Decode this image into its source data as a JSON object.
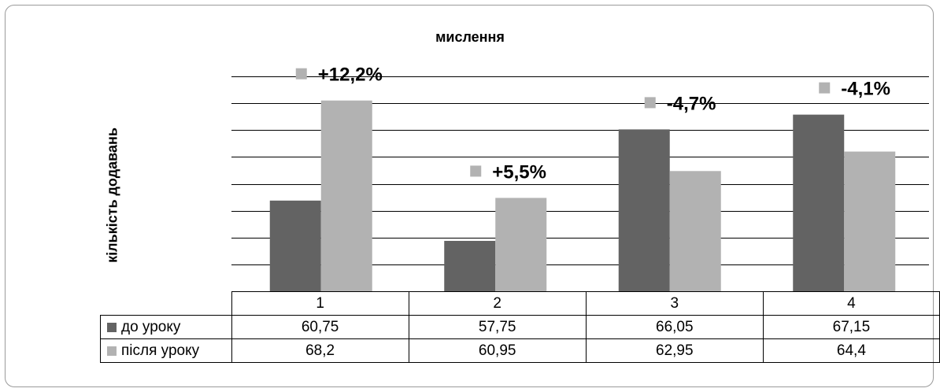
{
  "chart_data": {
    "type": "bar",
    "title": "мислення",
    "ylabel": "кількість додавань",
    "xlabel": "",
    "categories": [
      "1",
      "2",
      "3",
      "4"
    ],
    "series": [
      {
        "name": "до уроку",
        "color": "#636363",
        "values": [
          60.75,
          57.75,
          66.05,
          67.15
        ]
      },
      {
        "name": "після уроку",
        "color": "#b2b2b2",
        "values": [
          68.2,
          60.95,
          62.95,
          64.4
        ]
      }
    ],
    "value_labels": [
      "60,75",
      "57,75",
      "66,05",
      "67,15",
      "68,2",
      "60,95",
      "62,95",
      "64,4"
    ],
    "annotations": [
      {
        "category": "1",
        "text": "+12,2%"
      },
      {
        "category": "2",
        "text": "+5,5%"
      },
      {
        "category": "3",
        "text": "-4,7%"
      },
      {
        "category": "4",
        "text": "-4,1%"
      }
    ],
    "ylim": [
      54,
      70
    ],
    "y_tick_step": 2,
    "y_ticks_labeled": false,
    "grid": true,
    "legend": "data-table"
  }
}
